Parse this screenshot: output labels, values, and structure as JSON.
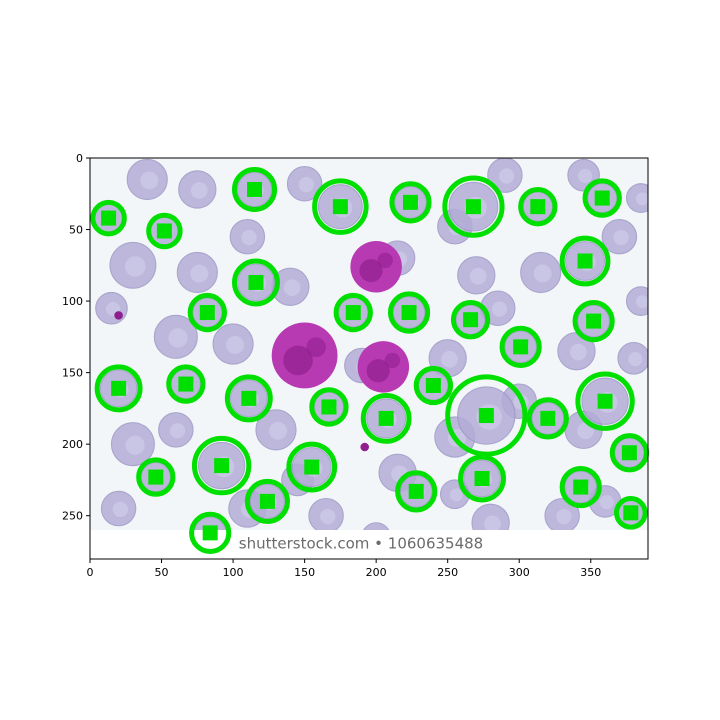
{
  "figure": {
    "image_width_units": 390,
    "image_height_units": 280,
    "x_ticks": [
      0,
      50,
      100,
      150,
      200,
      250,
      300,
      350
    ],
    "y_ticks": [
      0,
      50,
      100,
      150,
      200,
      250
    ],
    "watermark": "shutterstock.com • 1060635488",
    "colors": {
      "background": "#f3f6f8",
      "rbc_fill": "#b3add7",
      "rbc_edge": "#9e98c6",
      "rbc_center": "#cfcbe8",
      "wbc_fill": "#b83ab3",
      "wbc_dark": "#8f1f8e",
      "detection": "#00e000"
    }
  },
  "cells": {
    "background_rbcs": [
      [
        40,
        15,
        14
      ],
      [
        75,
        22,
        13
      ],
      [
        150,
        18,
        12
      ],
      [
        290,
        12,
        12
      ],
      [
        345,
        12,
        11
      ],
      [
        385,
        28,
        10
      ],
      [
        30,
        75,
        16
      ],
      [
        75,
        80,
        14
      ],
      [
        110,
        55,
        12
      ],
      [
        255,
        48,
        12
      ],
      [
        270,
        82,
        13
      ],
      [
        315,
        80,
        14
      ],
      [
        370,
        55,
        12
      ],
      [
        385,
        100,
        10
      ],
      [
        15,
        105,
        11
      ],
      [
        140,
        90,
        13
      ],
      [
        215,
        70,
        12
      ],
      [
        60,
        125,
        15
      ],
      [
        100,
        130,
        14
      ],
      [
        250,
        140,
        13
      ],
      [
        285,
        105,
        12
      ],
      [
        340,
        135,
        13
      ],
      [
        380,
        140,
        11
      ],
      [
        30,
        200,
        15
      ],
      [
        130,
        190,
        14
      ],
      [
        190,
        145,
        12
      ],
      [
        215,
        220,
        13
      ],
      [
        255,
        195,
        14
      ],
      [
        300,
        170,
        12
      ],
      [
        345,
        190,
        13
      ],
      [
        20,
        245,
        12
      ],
      [
        110,
        245,
        13
      ],
      [
        165,
        250,
        12
      ],
      [
        280,
        255,
        13
      ],
      [
        330,
        250,
        12
      ],
      [
        360,
        240,
        11
      ],
      [
        200,
        265,
        10
      ],
      [
        60,
        190,
        12
      ],
      [
        145,
        225,
        11
      ],
      [
        255,
        235,
        10
      ]
    ],
    "wbcs": [
      [
        200,
        76,
        18
      ],
      [
        150,
        138,
        23
      ],
      [
        205,
        146,
        18
      ]
    ],
    "platelets": [
      [
        20,
        110,
        3
      ],
      [
        192,
        202,
        3
      ]
    ]
  },
  "detections": [
    [
      13,
      42,
      11
    ],
    [
      52,
      51,
      11
    ],
    [
      115,
      22,
      14
    ],
    [
      175,
      34,
      18
    ],
    [
      224,
      31,
      13
    ],
    [
      268,
      34,
      20
    ],
    [
      313,
      34,
      12
    ],
    [
      358,
      28,
      12
    ],
    [
      346,
      72,
      16
    ],
    [
      82,
      108,
      12
    ],
    [
      116,
      87,
      15
    ],
    [
      184,
      108,
      12
    ],
    [
      223,
      108,
      13
    ],
    [
      266,
      113,
      12
    ],
    [
      301,
      132,
      13
    ],
    [
      352,
      114,
      13
    ],
    [
      20,
      161,
      15
    ],
    [
      67,
      158,
      12
    ],
    [
      111,
      168,
      15
    ],
    [
      167,
      174,
      12
    ],
    [
      207,
      182,
      16
    ],
    [
      240,
      159,
      12
    ],
    [
      277,
      180,
      27
    ],
    [
      320,
      182,
      13
    ],
    [
      360,
      170,
      19
    ],
    [
      46,
      223,
      12
    ],
    [
      92,
      215,
      19
    ],
    [
      155,
      216,
      16
    ],
    [
      124,
      240,
      14
    ],
    [
      228,
      233,
      13
    ],
    [
      274,
      224,
      15
    ],
    [
      343,
      230,
      13
    ],
    [
      377,
      206,
      12
    ],
    [
      378,
      248,
      10
    ],
    [
      84,
      262,
      13
    ]
  ]
}
